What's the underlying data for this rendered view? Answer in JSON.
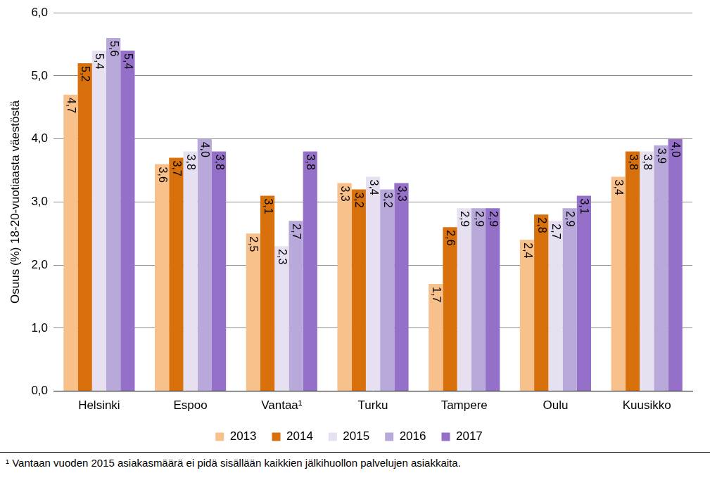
{
  "chart_data": {
    "type": "bar",
    "y_label": "Osuus (%) 18-20-vuotiaasta väestöstä",
    "categories": [
      "Helsinki",
      "Espoo",
      "Vantaa¹",
      "Turku",
      "Tampere",
      "Oulu",
      "Kuusikko"
    ],
    "series": [
      {
        "name": "2013",
        "color": "#F8C18C",
        "values": [
          4.7,
          3.6,
          2.5,
          3.3,
          1.7,
          2.4,
          3.4
        ],
        "value_labels": [
          "4,7",
          "3,6",
          "2,5",
          "3,3",
          "1,7",
          "2,4",
          "3,4"
        ]
      },
      {
        "name": "2014",
        "color": "#D8700C",
        "values": [
          5.2,
          3.7,
          3.1,
          3.2,
          2.6,
          2.8,
          3.8
        ],
        "value_labels": [
          "5,2",
          "3,7",
          "3,1",
          "3,2",
          "2,6",
          "2,8",
          "3,8"
        ]
      },
      {
        "name": "2015",
        "color": "#E6E0F0",
        "values": [
          5.4,
          3.8,
          2.3,
          3.4,
          2.9,
          2.7,
          3.8
        ],
        "value_labels": [
          "5,4",
          "3,8",
          "2,3",
          "3,4",
          "2,9",
          "2,7",
          "3,8"
        ]
      },
      {
        "name": "2016",
        "color": "#B9A9DB",
        "values": [
          5.6,
          4.0,
          2.7,
          3.2,
          2.9,
          2.9,
          3.9
        ],
        "value_labels": [
          "5,6",
          "4,0",
          "2,7",
          "3,2",
          "2,9",
          "2,9",
          "3,9"
        ]
      },
      {
        "name": "2017",
        "color": "#9570C8",
        "values": [
          5.4,
          3.8,
          3.8,
          3.3,
          2.9,
          3.1,
          4.0
        ],
        "value_labels": [
          "5,4",
          "3,8",
          "3,8",
          "3,3",
          "2,9",
          "3,1",
          "4,0"
        ]
      }
    ],
    "ylim": [
      0,
      6
    ],
    "yticks": [
      {
        "value": 0,
        "label": "0,0"
      },
      {
        "value": 1,
        "label": "1,0"
      },
      {
        "value": 2,
        "label": "2,0"
      },
      {
        "value": 3,
        "label": "3,0"
      },
      {
        "value": 4,
        "label": "4,0"
      },
      {
        "value": 5,
        "label": "5,0"
      },
      {
        "value": 6,
        "label": "6,0"
      }
    ],
    "grid": true,
    "legend": "bottom",
    "data_labels": true,
    "annotations": [
      "¹ Vantaan vuoden 2015 asiakasmäärä ei pidä sisällään kaikkien jälkihuollon palvelujen asiakkaita."
    ]
  }
}
